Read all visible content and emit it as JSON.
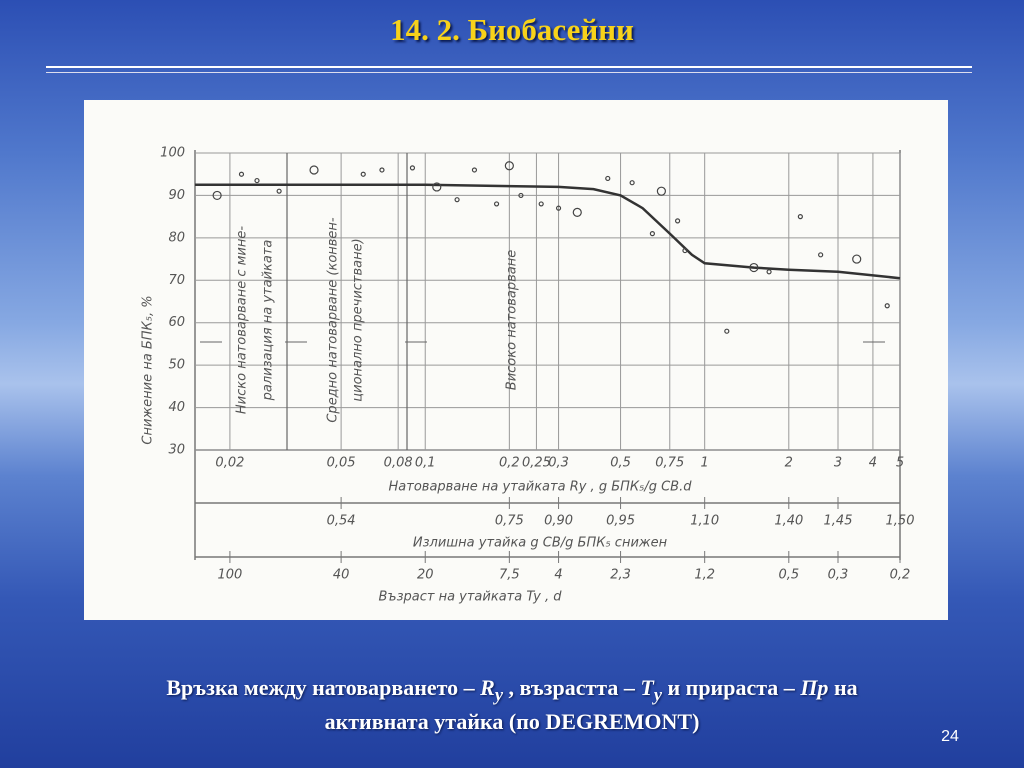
{
  "title": "14. 2. Биобасейни",
  "chart_data": {
    "type": "line",
    "ylabel": "Снижение на БПК₅, %",
    "xlabel": "Натоварване на утайката Ry , g БПК₅/g СВ.d",
    "x2label": "Излишна утайка g СВ/g БПК₅ снижен",
    "x3label": "Възраст на утайката Ty , d",
    "xscale": "log",
    "xlim": [
      0.015,
      5
    ],
    "ylim": [
      30,
      100
    ],
    "yticks": [
      30,
      40,
      50,
      60,
      70,
      80,
      90,
      100
    ],
    "xticks": [
      {
        "value": 0.02,
        "label": "0,02"
      },
      {
        "value": 0.05,
        "label": "0,05"
      },
      {
        "value": 0.08,
        "label": "0,08"
      },
      {
        "value": 0.1,
        "label": "0,1"
      },
      {
        "value": 0.2,
        "label": "0,2"
      },
      {
        "value": 0.25,
        "label": "0,25"
      },
      {
        "value": 0.3,
        "label": "0,3"
      },
      {
        "value": 0.5,
        "label": "0,5"
      },
      {
        "value": 0.75,
        "label": "0,75"
      },
      1,
      2,
      3,
      4,
      5
    ],
    "x2ticks": [
      {
        "value": 0.05,
        "label": "0,54"
      },
      {
        "value": 0.2,
        "label": "0,75"
      },
      {
        "value": 0.3,
        "label": "0,90"
      },
      {
        "value": 0.5,
        "label": "0,95"
      },
      {
        "value": 1,
        "label": "1,10"
      },
      {
        "value": 2,
        "label": "1,40"
      },
      {
        "value": 3,
        "label": "1,45"
      },
      {
        "value": 5,
        "label": "1,50"
      }
    ],
    "x3ticks": [
      {
        "value": 0.02,
        "label": "100"
      },
      {
        "value": 0.05,
        "label": "40"
      },
      {
        "value": 0.1,
        "label": "20"
      },
      {
        "value": 0.2,
        "label": "7,5"
      },
      {
        "value": 0.3,
        "label": "4"
      },
      {
        "value": 0.5,
        "label": "2,3"
      },
      {
        "value": 1,
        "label": "1,2"
      },
      {
        "value": 2,
        "label": "0,5"
      },
      {
        "value": 3,
        "label": "0,3"
      },
      {
        "value": 5,
        "label": "0,2"
      }
    ],
    "regions": [
      [
        "Ниско натоварване с мине-",
        "рализация на утайката"
      ],
      [
        "Средно натоварване (конвен-",
        "ционално пречистване)"
      ],
      [
        "Високо натоварване"
      ]
    ],
    "series": [
      {
        "color": "#333333",
        "x": [
          0.015,
          0.1,
          0.3,
          0.4,
          0.5,
          0.6,
          0.75,
          0.9,
          1,
          1.5,
          2,
          3,
          5
        ],
        "values": [
          92.5,
          92.5,
          92,
          91.5,
          90,
          87,
          81,
          76,
          74,
          73,
          72.5,
          72,
          70.5
        ]
      }
    ],
    "points": {
      "x": [
        0.018,
        0.022,
        0.025,
        0.03,
        0.04,
        0.06,
        0.07,
        0.09,
        0.11,
        0.13,
        0.15,
        0.18,
        0.2,
        0.22,
        0.26,
        0.3,
        0.35,
        0.45,
        0.55,
        0.65,
        0.7,
        0.8,
        0.85,
        1.2,
        1.5,
        1.7,
        2.2,
        2.6,
        3.5,
        4.5
      ],
      "y": [
        90,
        95,
        93.5,
        91,
        96,
        95,
        96,
        96.5,
        92,
        89,
        96,
        88,
        97,
        90,
        88,
        87,
        86,
        94,
        93,
        81,
        91,
        84,
        77,
        58,
        73,
        72,
        85,
        76,
        75,
        64
      ]
    }
  },
  "caption": [
    "Връзка между натоварването – ",
    "R",
    "y",
    " , възрастта – ",
    "T",
    "y",
    " и прираста – ",
    "Пр",
    " на",
    "активната утайка (по DEGREMONT)"
  ],
  "page_number": "24"
}
